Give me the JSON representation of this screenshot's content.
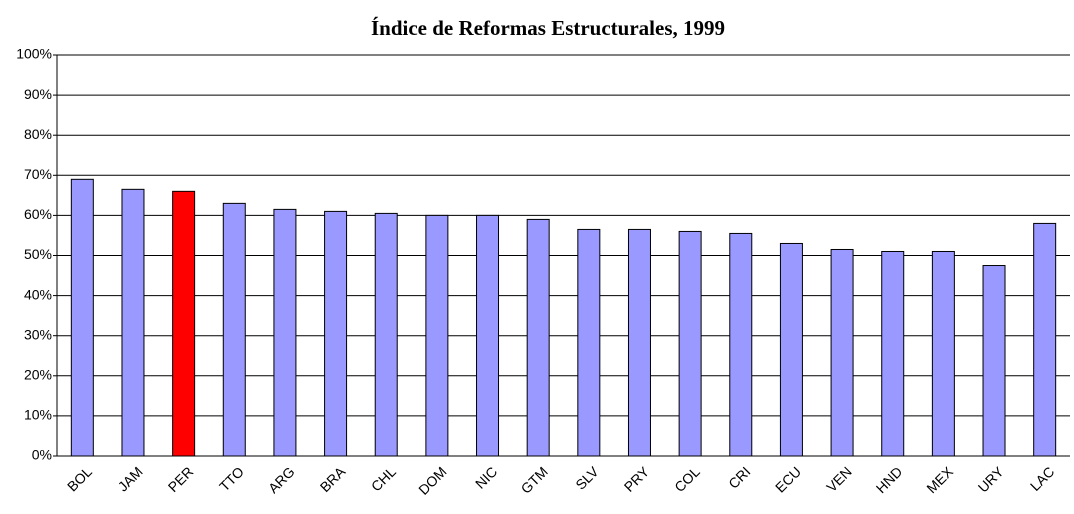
{
  "chart_data": {
    "type": "bar",
    "title": "Índice de Reformas Estructurales, 1999",
    "categories": [
      "BOL",
      "JAM",
      "PER",
      "TTO",
      "ARG",
      "BRA",
      "CHL",
      "DOM",
      "NIC",
      "GTM",
      "SLV",
      "PRY",
      "COL",
      "CRI",
      "ECU",
      "VEN",
      "HND",
      "MEX",
      "URY",
      "LAC"
    ],
    "values": [
      69,
      66.5,
      66,
      63,
      61.5,
      61,
      60.5,
      60,
      60,
      59,
      56.5,
      56.5,
      56,
      55.5,
      53,
      51.5,
      51,
      51,
      47.5,
      58
    ],
    "colors": [
      "#9999ff",
      "#9999ff",
      "#ff0000",
      "#9999ff",
      "#9999ff",
      "#9999ff",
      "#9999ff",
      "#9999ff",
      "#9999ff",
      "#9999ff",
      "#9999ff",
      "#9999ff",
      "#9999ff",
      "#9999ff",
      "#9999ff",
      "#9999ff",
      "#9999ff",
      "#9999ff",
      "#9999ff",
      "#9999ff"
    ],
    "ylim": [
      0,
      100
    ],
    "yticks": [
      {
        "value": 0,
        "label": "0%"
      },
      {
        "value": 10,
        "label": "10%"
      },
      {
        "value": 20,
        "label": "20%"
      },
      {
        "value": 30,
        "label": "30%"
      },
      {
        "value": 40,
        "label": "40%"
      },
      {
        "value": 50,
        "label": "50%"
      },
      {
        "value": 60,
        "label": "60%"
      },
      {
        "value": 70,
        "label": "70%"
      },
      {
        "value": 80,
        "label": "80%"
      },
      {
        "value": 90,
        "label": "90%"
      },
      {
        "value": 100,
        "label": "100%"
      }
    ],
    "grid": true
  }
}
